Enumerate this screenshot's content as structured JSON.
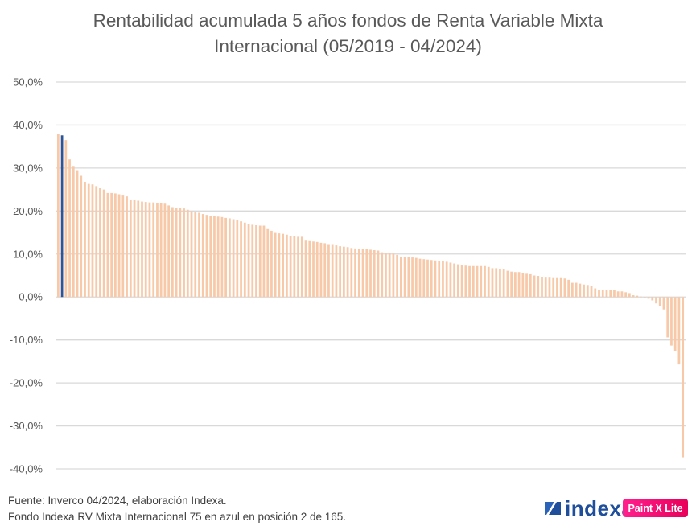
{
  "chart_data": {
    "type": "bar",
    "title": "Rentabilidad acumulada 5 años fondos de Renta Variable Mixta Internacional (05/2019 - 04/2024)",
    "title_lines": [
      "Rentabilidad acumulada 5 años fondos de Renta Variable Mixta",
      "Internacional (05/2019 - 04/2024)"
    ],
    "xlabel": "",
    "ylabel": "",
    "ylim": [
      -40,
      50
    ],
    "yticks": [
      50,
      40,
      30,
      20,
      10,
      0,
      -10,
      -20,
      -30,
      -40
    ],
    "ytick_labels": [
      "50,0%",
      "40,0%",
      "30,0%",
      "20,0%",
      "10,0%",
      "0,0%",
      "-10,0%",
      "-20,0%",
      "-30,0%",
      "-40,0%"
    ],
    "grid": true,
    "legend": "none",
    "highlight_index": 1,
    "colors": {
      "default": "#F7C9A8",
      "highlight": "#2E5496",
      "grid": "#D9D9D9"
    },
    "n_funds": 165,
    "values": [
      37.9,
      37.6,
      36.5,
      32.0,
      30.3,
      29.5,
      28.2,
      26.8,
      26.3,
      26.2,
      25.8,
      25.3,
      25.0,
      24.2,
      24.2,
      24.1,
      23.9,
      23.6,
      23.4,
      22.5,
      22.5,
      22.4,
      22.2,
      22.1,
      22.0,
      22.0,
      21.9,
      21.8,
      21.7,
      21.3,
      20.9,
      20.8,
      20.8,
      20.6,
      20.3,
      20.0,
      19.8,
      19.6,
      19.3,
      19.1,
      18.9,
      18.8,
      18.7,
      18.6,
      18.4,
      18.3,
      18.1,
      17.9,
      17.6,
      17.3,
      16.9,
      16.8,
      16.7,
      16.6,
      16.6,
      15.8,
      15.4,
      14.9,
      14.8,
      14.7,
      14.5,
      14.2,
      14.1,
      14.0,
      14.0,
      13.1,
      13.0,
      12.9,
      12.8,
      12.6,
      12.5,
      12.3,
      12.3,
      12.0,
      11.8,
      11.7,
      11.6,
      11.4,
      11.3,
      11.2,
      11.2,
      11.1,
      11.0,
      10.9,
      10.8,
      10.4,
      10.3,
      10.2,
      10.1,
      9.8,
      9.4,
      9.4,
      9.4,
      9.2,
      9.1,
      8.9,
      8.8,
      8.7,
      8.6,
      8.5,
      8.4,
      8.3,
      8.2,
      8.0,
      7.8,
      7.6,
      7.5,
      7.3,
      7.2,
      7.2,
      7.2,
      7.2,
      7.2,
      7.0,
      6.7,
      6.7,
      6.6,
      6.4,
      6.1,
      5.9,
      5.8,
      5.8,
      5.6,
      5.4,
      5.3,
      5.0,
      4.9,
      4.6,
      4.5,
      4.5,
      4.4,
      4.4,
      4.4,
      4.3,
      4.0,
      3.3,
      3.3,
      3.1,
      2.9,
      2.8,
      2.6,
      2.0,
      1.7,
      1.7,
      1.7,
      1.6,
      1.6,
      1.3,
      1.3,
      1.1,
      0.9,
      0.4,
      0.3,
      0.1,
      -0.1,
      -0.4,
      -0.8,
      -1.5,
      -2.2,
      -2.9,
      -9.4,
      -11.3,
      -12.6,
      -15.7,
      -37.3
    ]
  },
  "footer": {
    "source": "Fuente: Inverco 04/2024, elaboración Indexa.",
    "note": "Fondo Indexa RV Mixta Internacional 75 en azul en posición 2 de 165."
  },
  "logo": {
    "text": "indexa",
    "icon": "indexa-slash-icon",
    "color": "#1F4E9A"
  },
  "watermark": {
    "text": "Paint X Lite"
  }
}
